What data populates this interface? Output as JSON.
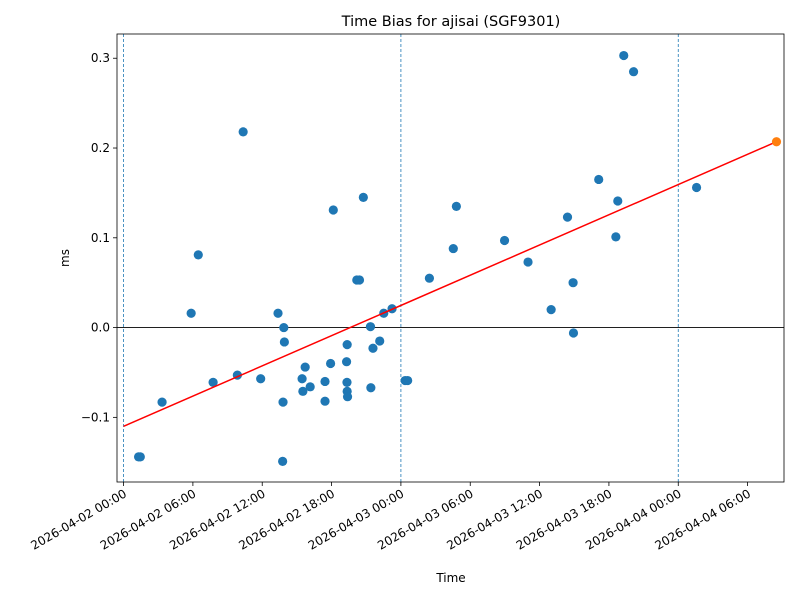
{
  "chart_data": {
    "type": "scatter",
    "title": "Time Bias for ajisai (SGF9301)",
    "xlabel": "Time",
    "ylabel": "ms",
    "x_range": [
      "2026-04-01T23:26",
      "2026-04-04T09:09"
    ],
    "ylim": [
      -0.172,
      0.327
    ],
    "grid": false,
    "x_ticks": [
      {
        "value": "2026-04-02T00:00",
        "label": "2026-04-02 00:00"
      },
      {
        "value": "2026-04-02T06:00",
        "label": "2026-04-02 06:00"
      },
      {
        "value": "2026-04-02T12:00",
        "label": "2026-04-02 12:00"
      },
      {
        "value": "2026-04-02T18:00",
        "label": "2026-04-02 18:00"
      },
      {
        "value": "2026-04-03T00:00",
        "label": "2026-04-03 00:00"
      },
      {
        "value": "2026-04-03T06:00",
        "label": "2026-04-03 06:00"
      },
      {
        "value": "2026-04-03T12:00",
        "label": "2026-04-03 12:00"
      },
      {
        "value": "2026-04-03T18:00",
        "label": "2026-04-03 18:00"
      },
      {
        "value": "2026-04-04T00:00",
        "label": "2026-04-04 00:00"
      },
      {
        "value": "2026-04-04T06:00",
        "label": "2026-04-04 06:00"
      }
    ],
    "y_ticks": [
      {
        "value": -0.1,
        "label": "−0.1"
      },
      {
        "value": 0.0,
        "label": "0.0"
      },
      {
        "value": 0.1,
        "label": "0.1"
      },
      {
        "value": 0.2,
        "label": "0.2"
      },
      {
        "value": 0.3,
        "label": "0.3"
      }
    ],
    "reference_lines": {
      "horizontal": [
        0.0
      ],
      "vertical_dashed": [
        "2026-04-02T00:00",
        "2026-04-03T00:00",
        "2026-04-04T00:00"
      ]
    },
    "series": [
      {
        "type": "scatter",
        "color": "#1f77b4",
        "points": [
          {
            "x": "2026-04-02T01:18",
            "y": -0.144
          },
          {
            "x": "2026-04-02T01:27",
            "y": -0.144
          },
          {
            "x": "2026-04-02T03:20",
            "y": -0.083
          },
          {
            "x": "2026-04-02T05:51",
            "y": 0.016
          },
          {
            "x": "2026-04-02T06:28",
            "y": 0.081
          },
          {
            "x": "2026-04-02T07:45",
            "y": -0.061
          },
          {
            "x": "2026-04-02T09:51",
            "y": -0.053
          },
          {
            "x": "2026-04-02T10:21",
            "y": 0.218
          },
          {
            "x": "2026-04-02T11:52",
            "y": -0.057
          },
          {
            "x": "2026-04-02T13:22",
            "y": 0.016
          },
          {
            "x": "2026-04-02T13:52",
            "y": 0.0
          },
          {
            "x": "2026-04-02T13:55",
            "y": -0.016
          },
          {
            "x": "2026-04-02T13:48",
            "y": -0.083
          },
          {
            "x": "2026-04-02T13:46",
            "y": -0.149
          },
          {
            "x": "2026-04-02T15:27",
            "y": -0.057
          },
          {
            "x": "2026-04-02T15:31",
            "y": -0.071
          },
          {
            "x": "2026-04-02T15:43",
            "y": -0.044
          },
          {
            "x": "2026-04-02T16:09",
            "y": -0.066
          },
          {
            "x": "2026-04-02T17:26",
            "y": -0.06
          },
          {
            "x": "2026-04-02T17:26",
            "y": -0.082
          },
          {
            "x": "2026-04-02T17:55",
            "y": -0.04
          },
          {
            "x": "2026-04-02T18:09",
            "y": 0.131
          },
          {
            "x": "2026-04-02T19:21",
            "y": -0.019
          },
          {
            "x": "2026-04-02T19:18",
            "y": -0.038
          },
          {
            "x": "2026-04-02T19:20",
            "y": -0.061
          },
          {
            "x": "2026-04-02T19:21",
            "y": -0.071
          },
          {
            "x": "2026-04-02T19:23",
            "y": -0.077
          },
          {
            "x": "2026-04-02T20:11",
            "y": 0.053
          },
          {
            "x": "2026-04-02T20:25",
            "y": 0.053
          },
          {
            "x": "2026-04-02T20:45",
            "y": 0.145
          },
          {
            "x": "2026-04-02T21:22",
            "y": 0.001
          },
          {
            "x": "2026-04-02T21:35",
            "y": -0.023
          },
          {
            "x": "2026-04-02T21:24",
            "y": -0.067
          },
          {
            "x": "2026-04-02T22:10",
            "y": -0.015
          },
          {
            "x": "2026-04-02T22:31",
            "y": 0.016
          },
          {
            "x": "2026-04-02T23:14",
            "y": 0.021
          },
          {
            "x": "2026-04-03T00:22",
            "y": -0.059
          },
          {
            "x": "2026-04-03T00:35",
            "y": -0.059
          },
          {
            "x": "2026-04-03T02:28",
            "y": 0.055
          },
          {
            "x": "2026-04-03T04:32",
            "y": 0.088
          },
          {
            "x": "2026-04-03T04:48",
            "y": 0.135
          },
          {
            "x": "2026-04-03T08:58",
            "y": 0.097
          },
          {
            "x": "2026-04-03T11:00",
            "y": 0.073
          },
          {
            "x": "2026-04-03T13:00",
            "y": 0.02
          },
          {
            "x": "2026-04-03T14:25",
            "y": 0.123
          },
          {
            "x": "2026-04-03T14:54",
            "y": 0.05
          },
          {
            "x": "2026-04-03T14:56",
            "y": -0.006
          },
          {
            "x": "2026-04-03T17:07",
            "y": 0.165
          },
          {
            "x": "2026-04-03T18:36",
            "y": 0.101
          },
          {
            "x": "2026-04-03T18:46",
            "y": 0.141
          },
          {
            "x": "2026-04-03T19:17",
            "y": 0.303
          },
          {
            "x": "2026-04-03T20:08",
            "y": 0.285
          },
          {
            "x": "2026-04-04T01:35",
            "y": 0.156
          }
        ]
      },
      {
        "type": "scatter",
        "color": "#ff7f0e",
        "points": [
          {
            "x": "2026-04-04T08:30",
            "y": 0.207
          }
        ]
      },
      {
        "type": "line",
        "color": "#ff0000",
        "points": [
          {
            "x": "2026-04-02T00:00",
            "y": -0.11
          },
          {
            "x": "2026-04-04T08:30",
            "y": 0.207
          }
        ]
      }
    ]
  }
}
